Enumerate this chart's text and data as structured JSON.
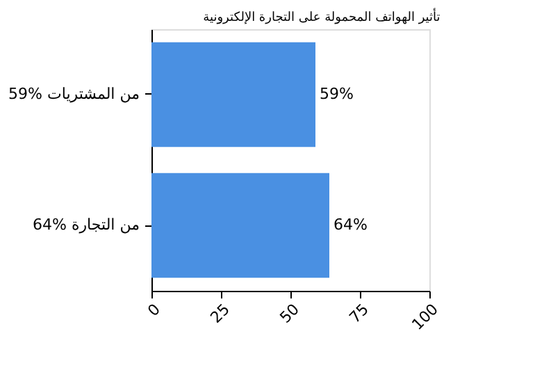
{
  "chart_data": {
    "type": "bar",
    "orientation": "horizontal",
    "title": "تأثير الهواتف المحمولة على التجارة الإلكترونية",
    "categories": [
      "59% من المشتريات",
      "64% من التجارة"
    ],
    "values": [
      59,
      64
    ],
    "color": "#4a90e2",
    "value_labels": [
      "59%",
      "64%"
    ],
    "xlim": [
      0,
      100
    ],
    "xticks": [
      0,
      25,
      50,
      75,
      100
    ],
    "grid": false
  }
}
